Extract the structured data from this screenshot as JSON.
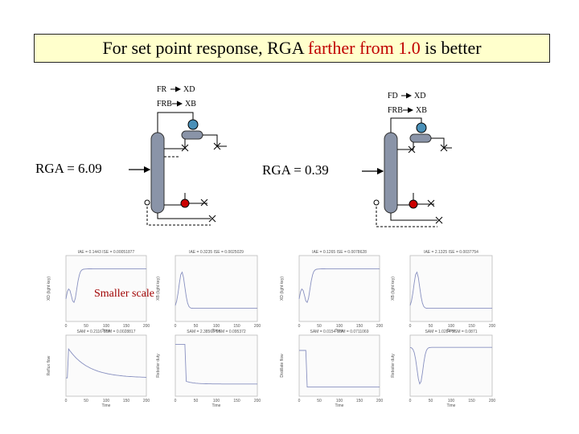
{
  "title": {
    "prefix": "For set point response, RGA ",
    "highlight": "farther from 1.0",
    "suffix": " is better"
  },
  "colors": {
    "title_bg": "#ffffcc",
    "highlight": "#c00000",
    "column_fill": "#8a94a8",
    "valve_red": "#cc0000",
    "accumulator_blue": "#4a90b8",
    "annotation": "#a00000"
  },
  "left_scheme": {
    "pairing_top": [
      "FR",
      "XD"
    ],
    "pairing_bottom": [
      "FRB",
      "XB"
    ],
    "rga_label": "RGA = 6.09",
    "plots": [
      {
        "header": "IAE = 0.1443 ISE = 0.00051877",
        "ylabel": "XD (light key)"
      },
      {
        "header": "IAE = 0.3235 ISE = 0.0025029",
        "ylabel": "XB (light key)"
      },
      {
        "header": "SAM = 0.2116 SSM = 0.0028817",
        "ylabel": "Reflux flow"
      },
      {
        "header": "SAM = 2.38565 SSM = 0.095372",
        "ylabel": "Reboiler duty"
      }
    ]
  },
  "right_scheme": {
    "pairing_top": [
      "FD",
      "XD"
    ],
    "pairing_bottom": [
      "FRB",
      "XB"
    ],
    "rga_label": "RGA = 0.39",
    "plots": [
      {
        "header": "IAE = 0.1265 ISE = 0.0078628",
        "ylabel": "XD (light key)"
      },
      {
        "header": "IAE = 2.1325 ISE = 0.0037754",
        "ylabel": "XB (light key)"
      },
      {
        "header": "SAM = 0.0154 SSM = 0.0711069",
        "ylabel": "Distillate flow"
      },
      {
        "header": "SAM = 1.0284 SSM = 0.0871",
        "ylabel": "Reboiler duty"
      }
    ]
  },
  "annotation": "Smaller scale",
  "time_ticks": [
    "0",
    "50",
    "100",
    "150",
    "200"
  ],
  "xlabel": "Time"
}
